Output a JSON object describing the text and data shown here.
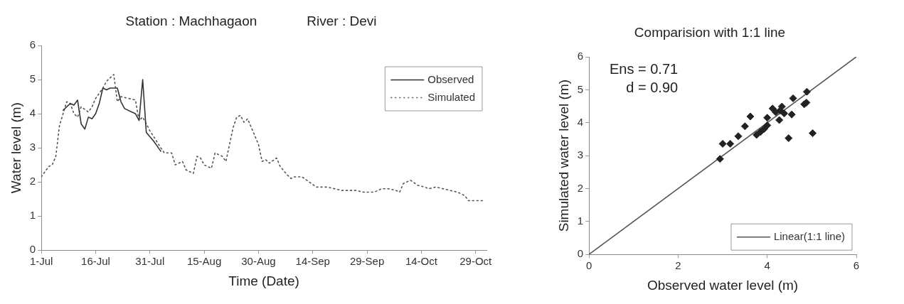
{
  "chart_data": [
    {
      "type": "line",
      "title": "Station : Machhagaon",
      "subtitle": "River : Devi",
      "xlabel": "Time (Date)",
      "ylabel": "Water level (m)",
      "legend": "top right",
      "xlim": [
        "--07-01",
        "--11-01"
      ],
      "xticks": [
        {
          "value": "--07-01",
          "label": "1-Jul"
        },
        {
          "value": "--07-16",
          "label": "16-Jul"
        },
        {
          "value": "--07-31",
          "label": "31-Jul"
        },
        {
          "value": "--08-15",
          "label": "15-Aug"
        },
        {
          "value": "--08-30",
          "label": "30-Aug"
        },
        {
          "value": "--09-14",
          "label": "14-Sep"
        },
        {
          "value": "--09-29",
          "label": "29-Sep"
        },
        {
          "value": "--10-14",
          "label": "14-Oct"
        },
        {
          "value": "--10-29",
          "label": "29-Oct"
        }
      ],
      "ylim": [
        0,
        6
      ],
      "yticks": [
        0,
        1,
        2,
        3,
        4,
        5,
        6
      ],
      "series": [
        {
          "name": "Observed",
          "color": "#333333",
          "line_style": "solid",
          "x": [
            "--07-07",
            "--07-08",
            "--07-09",
            "--07-10",
            "--07-11",
            "--07-12",
            "--07-13",
            "--07-14",
            "--07-15",
            "--07-16",
            "--07-17",
            "--07-18",
            "--07-19",
            "--07-20",
            "--07-22",
            "--07-23",
            "--07-24",
            "--07-26",
            "--07-27",
            "--07-28",
            "--07-29",
            "--07-30",
            "--08-01",
            "--08-03"
          ],
          "values": [
            4.1,
            4.2,
            4.3,
            4.25,
            4.4,
            3.7,
            3.55,
            3.9,
            3.85,
            4.0,
            4.3,
            4.75,
            4.7,
            4.75,
            4.75,
            4.35,
            4.15,
            4.05,
            4.0,
            3.8,
            5.0,
            3.45,
            3.2,
            2.9
          ]
        },
        {
          "name": "Simulated",
          "color": "#555555",
          "line_style": "dotted",
          "x": [
            "--07-01",
            "--07-03",
            "--07-04",
            "--07-05",
            "--07-06",
            "--07-07",
            "--07-08",
            "--07-09",
            "--07-10",
            "--07-11",
            "--07-12",
            "--07-14",
            "--07-15",
            "--07-16",
            "--07-18",
            "--07-19",
            "--07-21",
            "--07-22",
            "--07-23",
            "--07-25",
            "--07-27",
            "--07-28",
            "--07-29",
            "--07-31",
            "--08-03",
            "--08-04",
            "--08-06",
            "--08-07",
            "--08-09",
            "--08-10",
            "--08-12",
            "--08-13",
            "--08-14",
            "--08-15",
            "--08-17",
            "--08-18",
            "--08-20",
            "--08-21",
            "--08-22",
            "--08-23",
            "--08-24",
            "--08-25",
            "--08-26",
            "--08-27",
            "--08-29",
            "--08-30",
            "--08-31",
            "--09-01",
            "--09-02",
            "--09-04",
            "--09-05",
            "--09-07",
            "--09-08",
            "--09-09",
            "--09-11",
            "--09-13",
            "--09-15",
            "--09-16",
            "--09-18",
            "--09-20",
            "--09-22",
            "--09-24",
            "--09-26",
            "--09-28",
            "--09-30",
            "--10-01",
            "--10-03",
            "--10-05",
            "--10-07",
            "--10-08",
            "--10-09",
            "--10-11",
            "--10-13",
            "--10-15",
            "--10-16",
            "--10-18",
            "--10-20",
            "--10-22",
            "--10-24",
            "--10-26",
            "--10-27",
            "--10-29",
            "--10-31"
          ],
          "values": [
            2.15,
            2.45,
            2.5,
            2.75,
            3.65,
            4.0,
            4.35,
            4.3,
            4.0,
            3.9,
            4.2,
            4.05,
            4.2,
            4.45,
            4.75,
            4.95,
            5.15,
            4.35,
            4.5,
            4.45,
            4.4,
            3.8,
            3.9,
            3.5,
            3.0,
            2.85,
            2.85,
            2.5,
            2.6,
            2.35,
            2.25,
            2.75,
            2.7,
            2.5,
            2.4,
            2.85,
            2.75,
            2.6,
            3.1,
            3.6,
            3.9,
            3.95,
            3.75,
            3.85,
            3.35,
            3.1,
            2.6,
            2.65,
            2.55,
            2.7,
            2.45,
            2.2,
            2.1,
            2.15,
            2.15,
            2.0,
            1.85,
            1.85,
            1.85,
            1.8,
            1.75,
            1.75,
            1.75,
            1.7,
            1.7,
            1.7,
            1.8,
            1.8,
            1.75,
            1.7,
            1.95,
            2.05,
            1.9,
            1.85,
            1.8,
            1.85,
            1.8,
            1.75,
            1.7,
            1.6,
            1.45,
            1.45,
            1.45
          ]
        }
      ]
    },
    {
      "type": "scatter",
      "title": "Comparision with 1:1 line",
      "xlabel": "Observed water level (m)",
      "ylabel": "Simulated water level (m)",
      "legend": "bottom right",
      "annotations": [
        "Ens = 0.71",
        "d = 0.90"
      ],
      "xlim": [
        0,
        6
      ],
      "xticks": [
        0,
        2,
        4,
        6
      ],
      "ylim": [
        0,
        6
      ],
      "yticks": [
        0,
        1,
        2,
        3,
        4,
        5,
        6
      ],
      "series": [
        {
          "color": "#222222",
          "marker": "diamond",
          "x": [
            2.94,
            3.0,
            3.17,
            3.35,
            3.5,
            3.62,
            3.76,
            3.85,
            3.93,
            4.0,
            4.0,
            4.12,
            4.19,
            4.29,
            4.33,
            4.38,
            4.27,
            4.58,
            4.55,
            4.48,
            4.83,
            4.88,
            4.89,
            5.02
          ],
          "values": [
            2.9,
            3.36,
            3.36,
            3.59,
            3.89,
            4.19,
            3.63,
            3.72,
            3.81,
            4.15,
            3.92,
            4.43,
            4.32,
            4.37,
            4.49,
            4.28,
            4.08,
            4.74,
            4.25,
            3.53,
            4.56,
            4.61,
            4.94,
            3.68
          ]
        },
        {
          "type": "line",
          "name": "Linear(1:1 line)",
          "color": "#555555",
          "line_style": "solid",
          "x": [
            0,
            6
          ],
          "values": [
            0,
            6
          ]
        }
      ]
    }
  ]
}
